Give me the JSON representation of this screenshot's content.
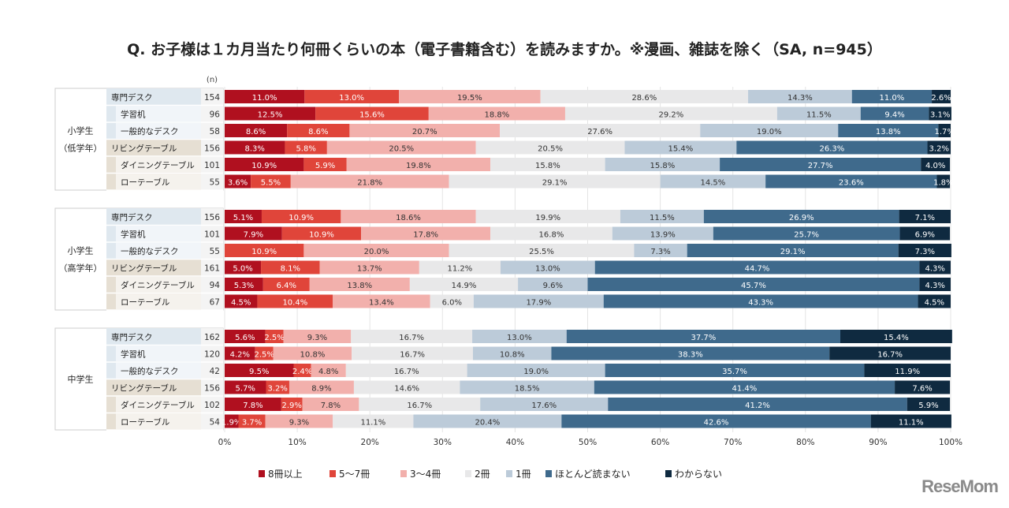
{
  "chart_data": {
    "type": "bar",
    "orientation": "horizontal-stacked-100",
    "title": "Q. お子様は１カ月当たり何冊くらいの本（電子書籍含む）を読みますか。※漫画、雑誌を除く（SA, n=945）",
    "n_header": "(n)",
    "xlim": [
      0,
      100
    ],
    "xticks": [
      "0%",
      "10%",
      "20%",
      "30%",
      "40%",
      "50%",
      "60%",
      "70%",
      "80%",
      "90%",
      "100%"
    ],
    "legend_position": "bottom",
    "series": [
      {
        "name": "8冊以上",
        "color": "#b0101f"
      },
      {
        "name": "5～7冊",
        "color": "#e0453a"
      },
      {
        "name": "3～4冊",
        "color": "#f2b0ac"
      },
      {
        "name": "2冊",
        "color": "#e8e8e9"
      },
      {
        "name": "1冊",
        "color": "#bccbd9"
      },
      {
        "name": "ほとんど読まない",
        "color": "#3f6a8c"
      },
      {
        "name": "わからない",
        "color": "#0f2a40"
      }
    ],
    "groups": [
      {
        "label": [
          "小学生",
          "（低学年）"
        ],
        "rows": [
          {
            "label": "専門デスク",
            "n": "154",
            "values": [
              11.0,
              13.0,
              19.5,
              28.6,
              14.3,
              11.0,
              2.6
            ]
          },
          {
            "label": "学習机",
            "n": "96",
            "values": [
              12.5,
              15.6,
              18.8,
              29.2,
              11.5,
              9.4,
              3.1
            ]
          },
          {
            "label": "一般的なデスク",
            "n": "58",
            "values": [
              8.6,
              8.6,
              20.7,
              27.6,
              19.0,
              13.8,
              1.7
            ]
          },
          {
            "label": "リビングテーブル",
            "n": "156",
            "values": [
              8.3,
              5.8,
              20.5,
              20.5,
              15.4,
              26.3,
              3.2
            ]
          },
          {
            "label": "ダイニングテーブル",
            "n": "101",
            "values": [
              10.9,
              5.9,
              19.8,
              15.8,
              15.8,
              27.7,
              4.0
            ]
          },
          {
            "label": "ローテーブル",
            "n": "55",
            "values": [
              3.6,
              5.5,
              21.8,
              29.1,
              14.5,
              23.6,
              1.8
            ]
          }
        ]
      },
      {
        "label": [
          "小学生",
          "（高学年）"
        ],
        "rows": [
          {
            "label": "専門デスク",
            "n": "156",
            "values": [
              5.1,
              10.9,
              18.6,
              19.9,
              11.5,
              26.9,
              7.1
            ]
          },
          {
            "label": "学習机",
            "n": "101",
            "values": [
              7.9,
              10.9,
              17.8,
              16.8,
              13.9,
              25.7,
              6.9
            ]
          },
          {
            "label": "一般的なデスク",
            "n": "55",
            "values": [
              0,
              10.9,
              20.0,
              25.5,
              7.3,
              29.1,
              7.3
            ]
          },
          {
            "label": "リビングテーブル",
            "n": "161",
            "values": [
              5.0,
              8.1,
              13.7,
              11.2,
              13.0,
              44.7,
              4.3
            ]
          },
          {
            "label": "ダイニングテーブル",
            "n": "94",
            "values": [
              5.3,
              6.4,
              13.8,
              14.9,
              9.6,
              45.7,
              4.3
            ]
          },
          {
            "label": "ローテーブル",
            "n": "67",
            "values": [
              4.5,
              10.4,
              13.4,
              6.0,
              17.9,
              43.3,
              4.5
            ]
          }
        ]
      },
      {
        "label": [
          "中学生"
        ],
        "rows": [
          {
            "label": "専門デスク",
            "n": "162",
            "values": [
              5.6,
              2.5,
              9.3,
              16.7,
              13.0,
              37.7,
              15.4
            ]
          },
          {
            "label": "学習机",
            "n": "120",
            "values": [
              4.2,
              2.5,
              10.8,
              16.7,
              10.8,
              38.3,
              16.7
            ]
          },
          {
            "label": "一般的なデスク",
            "n": "42",
            "values": [
              9.5,
              2.4,
              4.8,
              16.7,
              19.0,
              35.7,
              11.9
            ]
          },
          {
            "label": "リビングテーブル",
            "n": "156",
            "values": [
              5.7,
              3.2,
              8.9,
              14.6,
              18.5,
              41.4,
              7.6
            ]
          },
          {
            "label": "ダイニングテーブル",
            "n": "102",
            "values": [
              7.8,
              2.9,
              7.8,
              16.7,
              17.6,
              41.2,
              5.9
            ]
          },
          {
            "label": "ローテーブル",
            "n": "54",
            "values": [
              1.9,
              3.7,
              9.3,
              11.1,
              20.4,
              42.6,
              11.1
            ]
          }
        ]
      }
    ]
  },
  "logo": "ReseMom"
}
